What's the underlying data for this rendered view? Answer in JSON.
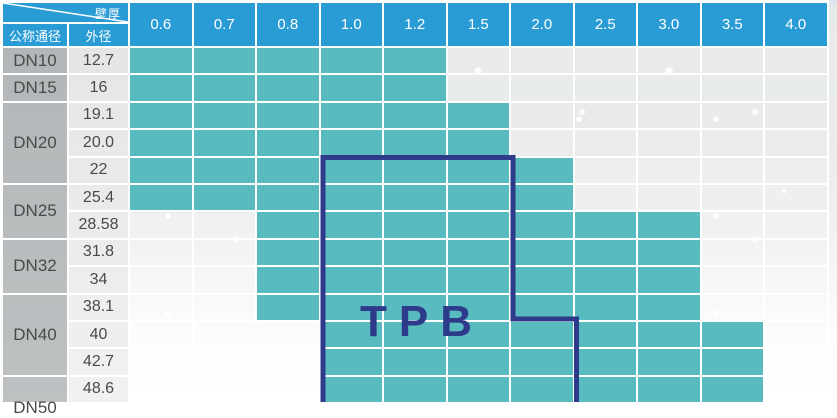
{
  "table": {
    "corner": {
      "wall_thickness_label": "壁厚",
      "nominal_diameter_label": "公称通径",
      "outer_diameter_label": "外径"
    },
    "thickness_headers": [
      "0.6",
      "0.7",
      "0.8",
      "1.0",
      "1.2",
      "1.5",
      "2.0",
      "2.5",
      "3.0",
      "3.5",
      "4.0"
    ],
    "groups": [
      {
        "dn": "DN10",
        "rows": [
          {
            "od": "12.7",
            "teal_from": 0,
            "teal_to": 4
          }
        ]
      },
      {
        "dn": "DN15",
        "rows": [
          {
            "od": "16",
            "teal_from": 0,
            "teal_to": 4
          }
        ]
      },
      {
        "dn": "DN20",
        "rows": [
          {
            "od": "19.1",
            "teal_from": 0,
            "teal_to": 5
          },
          {
            "od": "20.0",
            "teal_from": 0,
            "teal_to": 5
          },
          {
            "od": "22",
            "teal_from": 0,
            "teal_to": 6
          }
        ]
      },
      {
        "dn": "DN25",
        "rows": [
          {
            "od": "25.4",
            "teal_from": 0,
            "teal_to": 6
          },
          {
            "od": "28.58",
            "teal_from": 2,
            "teal_to": 8
          }
        ]
      },
      {
        "dn": "DN32",
        "rows": [
          {
            "od": "31.8",
            "teal_from": 2,
            "teal_to": 8
          },
          {
            "od": "34",
            "teal_from": 2,
            "teal_to": 8
          }
        ]
      },
      {
        "dn": "DN40",
        "rows": [
          {
            "od": "38.1",
            "teal_from": 2,
            "teal_to": 8
          },
          {
            "od": "40",
            "teal_from": 3,
            "teal_to": 9
          },
          {
            "od": "42.7",
            "teal_from": 3,
            "teal_to": 9
          }
        ]
      },
      {
        "dn": "DN50",
        "cut": true,
        "rows": [
          {
            "od": "48.6",
            "teal_from": 3,
            "teal_to": 9
          }
        ]
      }
    ]
  },
  "watermark": {
    "label": "TPB"
  },
  "colors": {
    "header_blue": "#2a9cd5",
    "available_teal": "#58bbc0",
    "dn_gray": "#b5b9bb",
    "od_gray": "#e6e8e9",
    "watermark_navy": "#2e3a8a",
    "grid_line_white": "#ffffff"
  }
}
